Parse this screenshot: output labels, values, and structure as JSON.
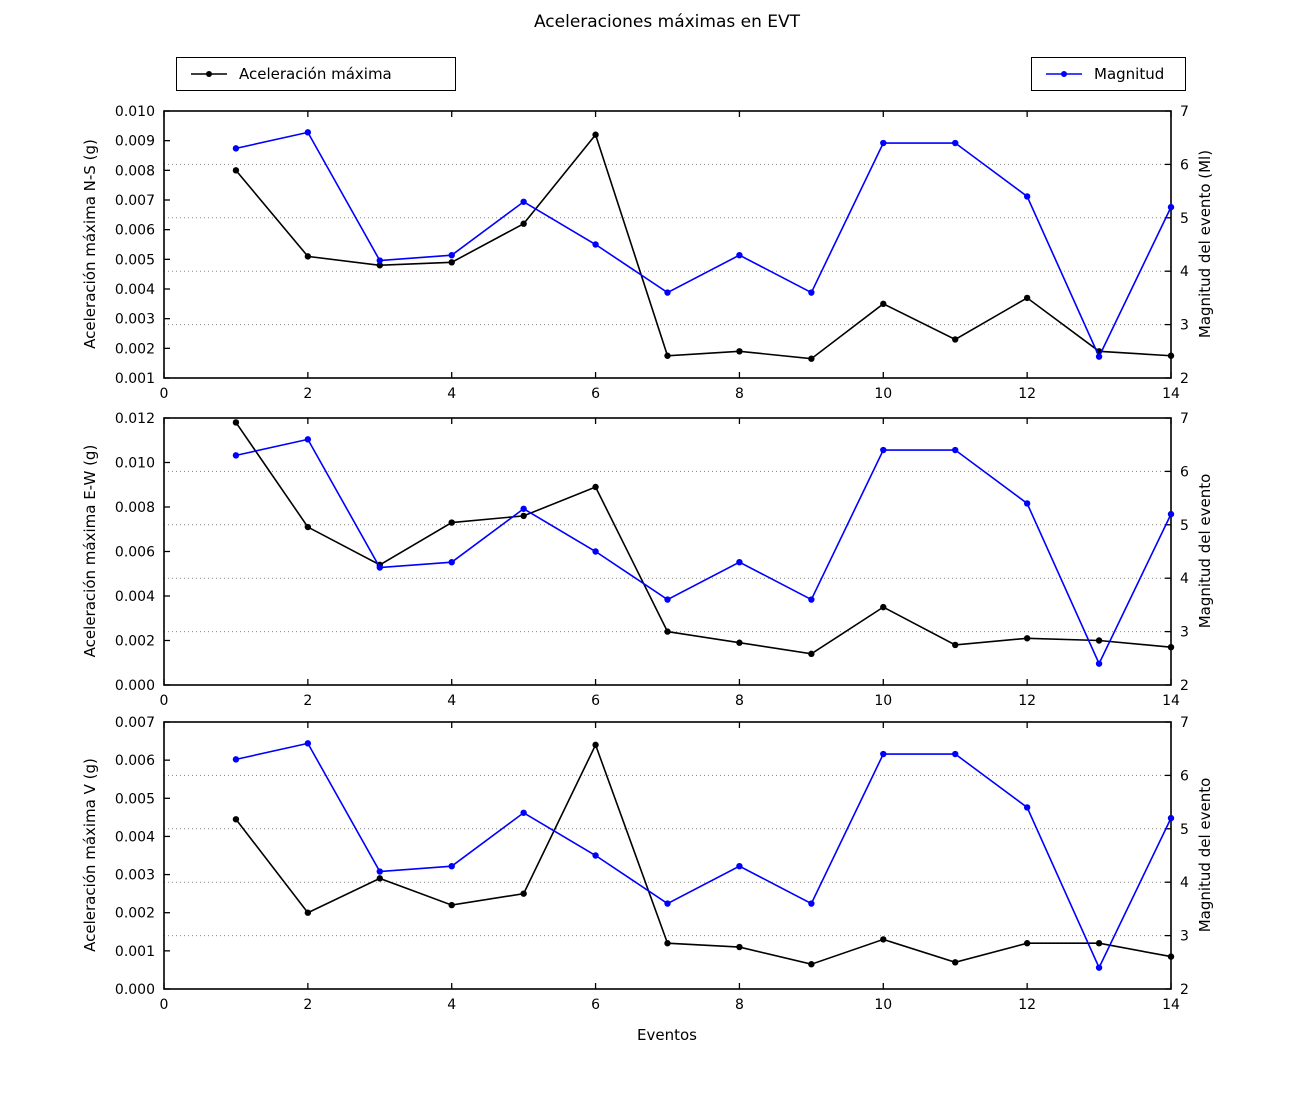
{
  "title": "Aceleraciones máximas en EVT",
  "xlabel": "Eventos",
  "legends": {
    "acceleration": {
      "label": "Aceleración máxima",
      "color": "#000000"
    },
    "magnitude": {
      "label": "Magnitud",
      "color": "#0000ff"
    }
  },
  "colors": {
    "grid": "#888888",
    "axis": "#000000"
  },
  "chart_data": [
    {
      "type": "line",
      "ylabel": "Aceleración máxima N-S (g)",
      "y2label": "Magnitud del evento (Ml)",
      "xlim": [
        0,
        14
      ],
      "ylim": [
        0.001,
        0.01
      ],
      "y2lim": [
        2,
        7
      ],
      "xticks": [
        0,
        2,
        4,
        6,
        8,
        10,
        12,
        14
      ],
      "yticks": [
        "0.001",
        "0.002",
        "0.003",
        "0.004",
        "0.005",
        "0.006",
        "0.007",
        "0.008",
        "0.009",
        "0.010"
      ],
      "y2ticks": [
        "2",
        "3",
        "4",
        "5",
        "6",
        "7"
      ],
      "grid_y2_values": [
        3,
        4,
        5,
        6
      ],
      "x": [
        1,
        2,
        3,
        4,
        5,
        6,
        7,
        8,
        9,
        10,
        11,
        12,
        13,
        14
      ],
      "series": [
        {
          "name": "Aceleración máxima",
          "axis": "y",
          "color": "#000000",
          "values": [
            0.008,
            0.0051,
            0.0048,
            0.0049,
            0.0062,
            0.0092,
            0.00175,
            0.0019,
            0.00165,
            0.0035,
            0.0023,
            0.0037,
            0.0019,
            0.00175
          ]
        },
        {
          "name": "Magnitud",
          "axis": "y2",
          "color": "#0000ff",
          "values": [
            6.3,
            6.6,
            4.2,
            4.3,
            5.3,
            4.5,
            3.6,
            4.3,
            3.6,
            6.4,
            6.4,
            5.4,
            2.4,
            5.2
          ]
        }
      ]
    },
    {
      "type": "line",
      "ylabel": "Aceleración máxima E-W (g)",
      "y2label": "Magnitud del evento",
      "xlim": [
        0,
        14
      ],
      "ylim": [
        0.0,
        0.012
      ],
      "y2lim": [
        2,
        7
      ],
      "xticks": [
        0,
        2,
        4,
        6,
        8,
        10,
        12,
        14
      ],
      "yticks": [
        "0.000",
        "0.002",
        "0.004",
        "0.006",
        "0.008",
        "0.010",
        "0.012"
      ],
      "y2ticks": [
        "2",
        "3",
        "4",
        "5",
        "6",
        "7"
      ],
      "grid_y2_values": [
        3,
        4,
        5,
        6
      ],
      "x": [
        1,
        2,
        3,
        4,
        5,
        6,
        7,
        8,
        9,
        10,
        11,
        12,
        13,
        14
      ],
      "series": [
        {
          "name": "Aceleración máxima",
          "axis": "y",
          "color": "#000000",
          "values": [
            0.0118,
            0.0071,
            0.0054,
            0.0073,
            0.0076,
            0.0089,
            0.0024,
            0.0019,
            0.0014,
            0.0035,
            0.0018,
            0.0021,
            0.002,
            0.0017
          ]
        },
        {
          "name": "Magnitud",
          "axis": "y2",
          "color": "#0000ff",
          "values": [
            6.3,
            6.6,
            4.2,
            4.3,
            5.3,
            4.5,
            3.6,
            4.3,
            3.6,
            6.4,
            6.4,
            5.4,
            2.4,
            5.2
          ]
        }
      ]
    },
    {
      "type": "line",
      "ylabel": "Aceleración máxima V (g)",
      "y2label": "Magnitud del evento",
      "xlim": [
        0,
        14
      ],
      "ylim": [
        0.0,
        0.007
      ],
      "y2lim": [
        2,
        7
      ],
      "xticks": [
        0,
        2,
        4,
        6,
        8,
        10,
        12,
        14
      ],
      "yticks": [
        "0.000",
        "0.001",
        "0.002",
        "0.003",
        "0.004",
        "0.005",
        "0.006",
        "0.007"
      ],
      "y2ticks": [
        "2",
        "3",
        "4",
        "5",
        "6",
        "7"
      ],
      "grid_y2_values": [
        3,
        4,
        5,
        6
      ],
      "x": [
        1,
        2,
        3,
        4,
        5,
        6,
        7,
        8,
        9,
        10,
        11,
        12,
        13,
        14
      ],
      "series": [
        {
          "name": "Aceleración máxima",
          "axis": "y",
          "color": "#000000",
          "values": [
            0.00445,
            0.002,
            0.0029,
            0.0022,
            0.0025,
            0.0064,
            0.0012,
            0.0011,
            0.00065,
            0.0013,
            0.0007,
            0.0012,
            0.0012,
            0.00085
          ]
        },
        {
          "name": "Magnitud",
          "axis": "y2",
          "color": "#0000ff",
          "values": [
            6.3,
            6.6,
            4.2,
            4.3,
            5.3,
            4.5,
            3.6,
            4.3,
            3.6,
            6.4,
            6.4,
            5.4,
            2.4,
            5.2
          ]
        }
      ]
    }
  ]
}
